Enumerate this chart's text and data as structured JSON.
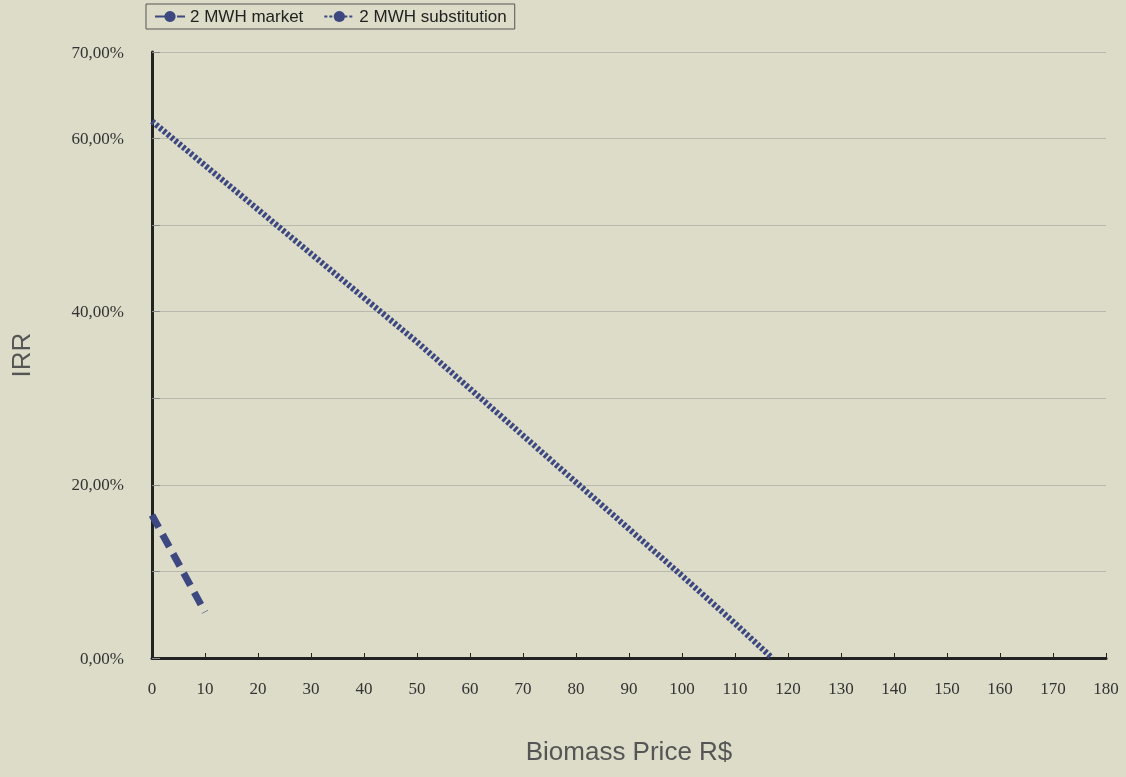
{
  "chart_data": {
    "type": "line",
    "xlabel": "Biomass Price R$",
    "ylabel": "IRR",
    "xlim": [
      0,
      180
    ],
    "xticks": [
      0,
      10,
      20,
      30,
      40,
      50,
      60,
      70,
      80,
      90,
      100,
      110,
      120,
      130,
      140,
      150,
      160,
      170,
      180
    ],
    "ylim": [
      0,
      70
    ],
    "yticks": [
      {
        "value": 0,
        "label": "0,00%"
      },
      {
        "value": 10,
        "label": null
      },
      {
        "value": 20,
        "label": "20,00%"
      },
      {
        "value": 30,
        "label": null
      },
      {
        "value": 40,
        "label": "40,00%"
      },
      {
        "value": 50,
        "label": null
      },
      {
        "value": 60,
        "label": "60,00%"
      },
      {
        "value": 70,
        "label": "70,00%"
      }
    ],
    "grid": "y",
    "legend": "top left",
    "marker": "none",
    "series": [
      {
        "name": "2 MWH market",
        "color": "#3d4880",
        "line_style": "dashed",
        "x": [
          0,
          10
        ],
        "values": [
          16.5,
          5.3
        ]
      },
      {
        "name": "2 MWH substitution",
        "color": "#3d4880",
        "line_style": "dotted",
        "x": [
          0,
          50,
          100,
          110,
          117
        ],
        "values": [
          62,
          36.5,
          9.5,
          4,
          0
        ]
      }
    ]
  }
}
